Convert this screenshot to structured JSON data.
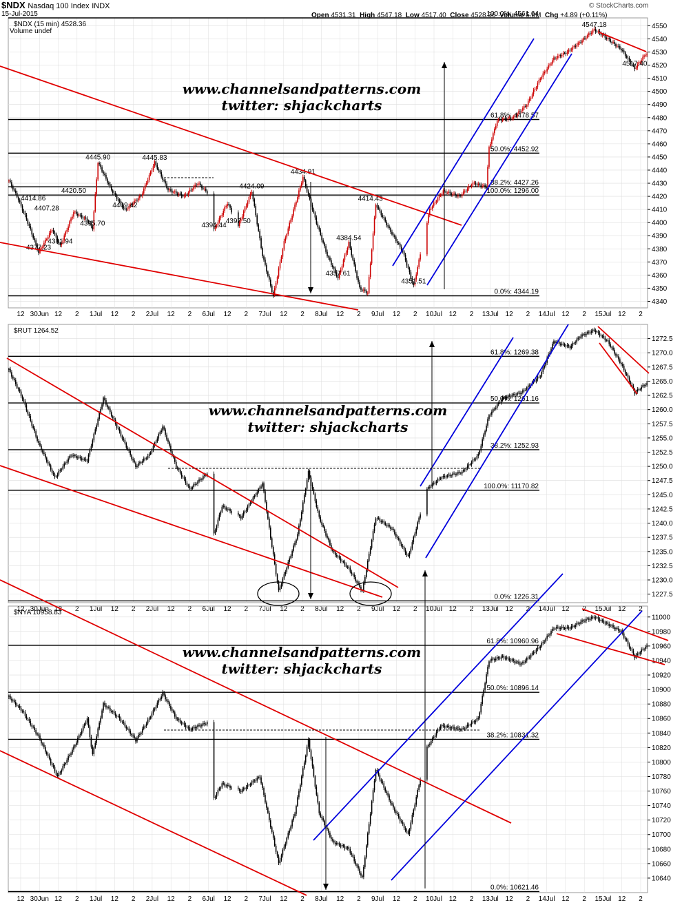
{
  "header": {
    "symbol": "$NDX",
    "name": "Nasdaq 100 Index",
    "exchange": "INDX",
    "date": "15-Jul-2015",
    "open_label": "Open",
    "open": "4531.31",
    "high_label": "High",
    "high": "4547.18",
    "low_label": "Low",
    "low": "4517.40",
    "close_label": "Close",
    "close": "4528.36",
    "volume_label": "Volume",
    "volume": "5.8M",
    "chg_label": "Chg",
    "chg": "+4.89 (+0.11%)",
    "source": "© StockCharts.com"
  },
  "watermark": {
    "line1": "www.channelsandpatterns.com",
    "line2": "twitter: shjackcharts"
  },
  "colors": {
    "up": "#cc0000",
    "down": "#000000",
    "trend": "#e00000",
    "channel": "#0000dd",
    "level": "#000000",
    "grid": "#dddddd"
  },
  "x_axis": {
    "labels": [
      "12",
      "30Jun",
      "12",
      "2",
      "1Jul",
      "12",
      "2",
      "2Jul",
      "12",
      "2",
      "6Jul",
      "12",
      "2",
      "7Jul",
      "12",
      "2",
      "8Jul",
      "12",
      "2",
      "9Jul",
      "12",
      "2",
      "10Jul",
      "12",
      "2",
      "13Jul",
      "12",
      "2",
      "14Jul",
      "12",
      "2",
      "15Jul",
      "12",
      "2"
    ]
  },
  "chart_data": [
    {
      "type": "candlestick",
      "title": "$NDX (15 min) 4528.36",
      "legend": [
        "$NDX (15 min) 4528.36",
        "Volume undef"
      ],
      "ylim": [
        4335,
        4556
      ],
      "y_ticks": [
        "4340",
        "4350",
        "4360",
        "4370",
        "4380",
        "4390",
        "4400",
        "4410",
        "4420",
        "4430",
        "4440",
        "4450",
        "4460",
        "4470",
        "4480",
        "4490",
        "4500",
        "4510",
        "4520",
        "4530",
        "4540",
        "4550"
      ],
      "anchors": [
        [
          0,
          4432
        ],
        [
          6,
          4420
        ],
        [
          14,
          4400
        ],
        [
          22,
          4377.23
        ],
        [
          32,
          4395
        ],
        [
          38,
          4381.94
        ],
        [
          48,
          4408
        ],
        [
          58,
          4402
        ],
        [
          62,
          4395.7
        ],
        [
          66,
          4445.9
        ],
        [
          76,
          4425
        ],
        [
          86,
          4409.42
        ],
        [
          98,
          4420.5
        ],
        [
          108,
          4445.83
        ],
        [
          118,
          4425
        ],
        [
          130,
          4420
        ],
        [
          140,
          4430
        ],
        [
          150,
          4420
        ],
        [
          152,
          4394.44
        ],
        [
          162,
          4415
        ],
        [
          170,
          4397.5
        ],
        [
          180,
          4424.09
        ],
        [
          188,
          4375
        ],
        [
          196,
          4344.15
        ],
        [
          204,
          4385
        ],
        [
          214,
          4420
        ],
        [
          218,
          4434.91
        ],
        [
          228,
          4400
        ],
        [
          236,
          4375
        ],
        [
          244,
          4357.61
        ],
        [
          252,
          4384.54
        ],
        [
          260,
          4350
        ],
        [
          266,
          4346.42
        ],
        [
          272,
          4414
        ],
        [
          282,
          4395
        ],
        [
          292,
          4378
        ],
        [
          300,
          4351.51
        ],
        [
          312,
          4410
        ],
        [
          322,
          4424
        ],
        [
          334,
          4420
        ],
        [
          344,
          4430
        ],
        [
          354,
          4427.26
        ],
        [
          356,
          4457
        ],
        [
          362,
          4478
        ],
        [
          374,
          4480
        ],
        [
          384,
          4490
        ],
        [
          394,
          4510
        ],
        [
          404,
          4525
        ],
        [
          414,
          4530
        ],
        [
          424,
          4538
        ],
        [
          434,
          4547.18
        ],
        [
          444,
          4540
        ],
        [
          454,
          4532
        ],
        [
          464,
          4517.4
        ],
        [
          472,
          4528.36
        ]
      ],
      "levels": [
        {
          "value": 4561.64,
          "label": "100.0%: 4561.64"
        },
        {
          "value": 4478.57,
          "label": "61.8%: 4478.57"
        },
        {
          "value": 4452.92,
          "label": "50.0%: 4452.92"
        },
        {
          "value": 4427.26,
          "label": "38.2%: 4427.26"
        },
        {
          "value": 4421.0,
          "label": "100.0%: 1296.00"
        },
        {
          "value": 4344.19,
          "label": "0.0%: 4344.19"
        }
      ],
      "annotations": [
        {
          "text": "4414.86",
          "x": 18,
          "y": 4414.86
        },
        {
          "text": "4407.28",
          "x": 28,
          "y": 4407.28
        },
        {
          "text": "4377.23",
          "x": 22,
          "y": 4377.23
        },
        {
          "text": "4420.50",
          "x": 48,
          "y": 4420.5
        },
        {
          "text": "4381.94",
          "x": 38,
          "y": 4381.94
        },
        {
          "text": "4395.70",
          "x": 62,
          "y": 4395.7
        },
        {
          "text": "4445.90",
          "x": 66,
          "y": 4445.9
        },
        {
          "text": "4409.42",
          "x": 86,
          "y": 4409.42
        },
        {
          "text": "4445.83",
          "x": 108,
          "y": 4445.83
        },
        {
          "text": "4394.44",
          "x": 152,
          "y": 4394.44
        },
        {
          "text": "4397.50",
          "x": 170,
          "y": 4397.5
        },
        {
          "text": "4424.09",
          "x": 180,
          "y": 4424.09
        },
        {
          "text": "4434.91",
          "x": 218,
          "y": 4434.91
        },
        {
          "text": "4357.61",
          "x": 244,
          "y": 4357.61
        },
        {
          "text": "4384.54",
          "x": 252,
          "y": 4384.54
        },
        {
          "text": "4414.43",
          "x": 268,
          "y": 4414.43
        },
        {
          "text": "4351.51",
          "x": 300,
          "y": 4351.51
        },
        {
          "text": "4547.18",
          "x": 434,
          "y": 4547.18
        },
        {
          "text": "4517.40",
          "x": 464,
          "y": 4517.4
        }
      ],
      "circled": [
        "4344.15",
        "4346.42"
      ]
    },
    {
      "type": "candlestick",
      "title": "$RUT 1264.52",
      "legend": [
        "$RUT 1264.52"
      ],
      "ylim": [
        1226,
        1275
      ],
      "y_ticks": [
        "1227.5",
        "1230.0",
        "1232.5",
        "1235.0",
        "1237.5",
        "1240.0",
        "1242.5",
        "1245.0",
        "1247.5",
        "1250.0",
        "1252.5",
        "1255.0",
        "1257.5",
        "1260.0",
        "1262.5",
        "1265.0",
        "1267.5",
        "1270.0",
        "1272.5"
      ],
      "anchors": [
        [
          0,
          1267
        ],
        [
          10,
          1262
        ],
        [
          22,
          1254
        ],
        [
          34,
          1248
        ],
        [
          46,
          1252
        ],
        [
          58,
          1251
        ],
        [
          70,
          1262
        ],
        [
          82,
          1256
        ],
        [
          94,
          1250
        ],
        [
          104,
          1252
        ],
        [
          114,
          1257
        ],
        [
          124,
          1250
        ],
        [
          134,
          1246
        ],
        [
          148,
          1249
        ],
        [
          152,
          1238
        ],
        [
          158,
          1243
        ],
        [
          172,
          1241
        ],
        [
          188,
          1247
        ],
        [
          200,
          1228
        ],
        [
          214,
          1238
        ],
        [
          222,
          1249
        ],
        [
          230,
          1241
        ],
        [
          240,
          1235
        ],
        [
          252,
          1232
        ],
        [
          262,
          1228
        ],
        [
          272,
          1241
        ],
        [
          284,
          1239
        ],
        [
          296,
          1234
        ],
        [
          310,
          1246
        ],
        [
          320,
          1248
        ],
        [
          336,
          1249
        ],
        [
          348,
          1252
        ],
        [
          356,
          1259
        ],
        [
          366,
          1262
        ],
        [
          380,
          1263
        ],
        [
          394,
          1266
        ],
        [
          404,
          1272
        ],
        [
          416,
          1271
        ],
        [
          424,
          1273
        ],
        [
          434,
          1274
        ],
        [
          444,
          1272
        ],
        [
          454,
          1268
        ],
        [
          464,
          1263
        ],
        [
          472,
          1264.5
        ]
      ],
      "levels": [
        {
          "value": 1269.38,
          "label": "61.8%: 1269.38"
        },
        {
          "value": 1261.16,
          "label": "50.0%: 1261.16"
        },
        {
          "value": 1252.93,
          "label": "38.2%: 1252.93"
        },
        {
          "value": 1245.8,
          "label": "100.0%: 11170.82"
        },
        {
          "value": 1226.31,
          "label": "0.0%: 1226.31"
        }
      ],
      "annotations": [],
      "circled": []
    },
    {
      "type": "candlestick",
      "title": "$NYA 10958.83",
      "legend": [
        "$NYA 10958.83"
      ],
      "ylim": [
        10620,
        11015
      ],
      "y_ticks": [
        "10640",
        "10660",
        "10680",
        "10700",
        "10720",
        "10740",
        "10760",
        "10780",
        "10800",
        "10820",
        "10840",
        "10860",
        "10880",
        "10900",
        "10920",
        "10940",
        "10960",
        "10980",
        "11000"
      ],
      "anchors": [
        [
          0,
          10890
        ],
        [
          10,
          10870
        ],
        [
          22,
          10835
        ],
        [
          36,
          10780
        ],
        [
          48,
          10820
        ],
        [
          58,
          10860
        ],
        [
          62,
          10810
        ],
        [
          70,
          10880
        ],
        [
          82,
          10860
        ],
        [
          94,
          10830
        ],
        [
          104,
          10860
        ],
        [
          114,
          10895
        ],
        [
          124,
          10860
        ],
        [
          134,
          10845
        ],
        [
          148,
          10855
        ],
        [
          152,
          10750
        ],
        [
          158,
          10770
        ],
        [
          172,
          10760
        ],
        [
          186,
          10780
        ],
        [
          200,
          10660
        ],
        [
          212,
          10730
        ],
        [
          222,
          10830
        ],
        [
          230,
          10730
        ],
        [
          240,
          10690
        ],
        [
          252,
          10680
        ],
        [
          262,
          10640
        ],
        [
          272,
          10790
        ],
        [
          284,
          10740
        ],
        [
          296,
          10700
        ],
        [
          310,
          10820
        ],
        [
          320,
          10850
        ],
        [
          336,
          10845
        ],
        [
          348,
          10860
        ],
        [
          356,
          10940
        ],
        [
          366,
          10945
        ],
        [
          380,
          10935
        ],
        [
          394,
          10960
        ],
        [
          404,
          10985
        ],
        [
          416,
          10985
        ],
        [
          426,
          10995
        ],
        [
          434,
          11000
        ],
        [
          444,
          10990
        ],
        [
          454,
          10980
        ],
        [
          464,
          10945
        ],
        [
          472,
          10958.8
        ]
      ],
      "levels": [
        {
          "value": 10960.96,
          "label": "61.8%: 10960.96"
        },
        {
          "value": 10896.14,
          "label": "50.0%: 10896.14"
        },
        {
          "value": 10831.32,
          "label": "38.2%: 10831.32"
        },
        {
          "value": 10621.46,
          "label": "0.0%: 10621.46"
        }
      ],
      "annotations": [],
      "circled": []
    }
  ]
}
